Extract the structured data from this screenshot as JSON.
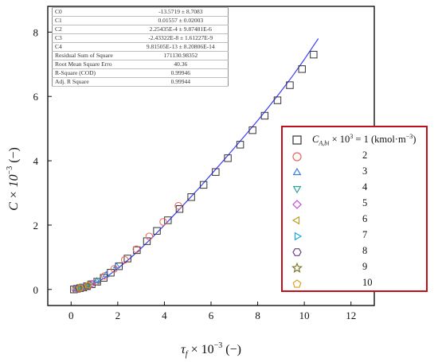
{
  "chart_data": {
    "type": "scatter",
    "xlabel": "τf × 10⁻³ (−)",
    "ylabel": "C × 10⁻³ (−)",
    "xlim": [
      -1,
      13
    ],
    "ylim": [
      -0.5,
      8.8
    ],
    "xticks": [
      0,
      2,
      4,
      6,
      8,
      10,
      12
    ],
    "yticks": [
      0,
      2,
      4,
      6,
      8
    ],
    "x_tick_labels": [
      "0",
      "2",
      "4",
      "6",
      "8",
      "10",
      "12"
    ],
    "y_tick_labels": [
      "0",
      "2",
      "4",
      "6",
      "8"
    ],
    "legend_position": "right",
    "fit_line": {
      "color": "#3a3aff",
      "x": [
        0.15,
        0.5,
        1.0,
        1.5,
        2.0,
        2.5,
        3.0,
        3.5,
        4.0,
        4.5,
        5.0,
        5.5,
        6.0,
        6.5,
        7.0,
        7.5,
        8.0,
        8.5,
        9.0,
        9.5,
        10.0,
        10.6
      ],
      "y": [
        0.0,
        0.05,
        0.18,
        0.38,
        0.65,
        0.95,
        1.28,
        1.63,
        2.0,
        2.38,
        2.77,
        3.16,
        3.57,
        3.98,
        4.4,
        4.82,
        5.25,
        5.7,
        6.16,
        6.64,
        7.15,
        7.8
      ]
    },
    "series": [
      {
        "name": "CA,bi × 10³ = 1 (kmol·m⁻³)",
        "marker": "square",
        "color": "#333333",
        "x": [
          0.12,
          0.25,
          0.38,
          0.52,
          0.68,
          0.88,
          1.12,
          1.4,
          1.7,
          2.05,
          2.42,
          2.82,
          3.25,
          3.68,
          4.15,
          4.65,
          5.15,
          5.68,
          6.2,
          6.72,
          7.25,
          7.78,
          8.3,
          8.85,
          9.38,
          9.9,
          10.4
        ],
        "y": [
          0.0,
          0.02,
          0.04,
          0.06,
          0.1,
          0.16,
          0.24,
          0.36,
          0.52,
          0.72,
          0.96,
          1.22,
          1.5,
          1.82,
          2.15,
          2.5,
          2.87,
          3.25,
          3.65,
          4.08,
          4.5,
          4.95,
          5.4,
          5.88,
          6.35,
          6.85,
          7.3
        ]
      },
      {
        "name": "2",
        "marker": "circle",
        "color": "#e9645a",
        "x": [
          0.18,
          0.35,
          0.55,
          0.8,
          1.1,
          1.45,
          1.85,
          2.3,
          2.8,
          3.35,
          3.95,
          4.6
        ],
        "y": [
          0.01,
          0.03,
          0.07,
          0.14,
          0.25,
          0.42,
          0.64,
          0.92,
          1.25,
          1.65,
          2.1,
          2.6
        ]
      },
      {
        "name": "3",
        "marker": "triangle-up",
        "color": "#3b7bd9",
        "x": [
          0.2,
          0.45,
          0.75,
          1.1,
          1.5,
          1.95
        ],
        "y": [
          0.01,
          0.05,
          0.13,
          0.26,
          0.45,
          0.72
        ]
      },
      {
        "name": "4",
        "marker": "triangle-down",
        "color": "#2aa198",
        "x": [
          0.22,
          0.48,
          0.8,
          1.15
        ],
        "y": [
          0.02,
          0.06,
          0.15,
          0.28
        ]
      },
      {
        "name": "5",
        "marker": "diamond",
        "color": "#c04cd6",
        "x": [
          0.25,
          0.55,
          0.9
        ],
        "y": [
          0.02,
          0.08,
          0.18
        ]
      },
      {
        "name": "6",
        "marker": "triangle-left",
        "color": "#b8a12a",
        "x": [
          0.28,
          0.6
        ],
        "y": [
          0.03,
          0.09
        ]
      },
      {
        "name": "7",
        "marker": "triangle-right",
        "color": "#1ea7d8",
        "x": [
          0.3,
          0.65
        ],
        "y": [
          0.03,
          0.1
        ]
      },
      {
        "name": "8",
        "marker": "hexagon",
        "color": "#6a3d7a",
        "x": [
          0.32,
          0.68
        ],
        "y": [
          0.04,
          0.11
        ]
      },
      {
        "name": "9",
        "marker": "star",
        "color": "#7a7a2a",
        "x": [
          0.35,
          0.7
        ],
        "y": [
          0.04,
          0.12
        ]
      },
      {
        "name": "10",
        "marker": "pentagon",
        "color": "#d9a21e",
        "x": [
          0.38,
          0.72
        ],
        "y": [
          0.05,
          0.13
        ]
      }
    ]
  },
  "stats_table": {
    "rows": [
      {
        "label": "C0",
        "value": "-13.5719 ± 8.7083"
      },
      {
        "label": "C1",
        "value": "0.01557 ± 0.02003"
      },
      {
        "label": "C2",
        "value": "2.25435E-4 ± 9.87481E-6"
      },
      {
        "label": "C3",
        "value": "-2.43322E-8 ± 1.61227E-9"
      },
      {
        "label": "C4",
        "value": "9.81505E-13 ± 8.20806E-14"
      },
      {
        "label": "Residual Sum of Square",
        "value": "171130.98352"
      },
      {
        "label": "Root Mean Square Erro",
        "value": "40.36"
      },
      {
        "label": "R-Square (COD)",
        "value": "0.99946"
      },
      {
        "label": "Adj. R Square",
        "value": "0.99944"
      }
    ]
  },
  "legend": {
    "first_label_prefix": "C",
    "first_label_sub": "A,bi",
    "first_label_mid": " × 10",
    "first_label_sup": "3",
    "first_label_suffix": " = 1 (kmol·m",
    "first_label_sup2": "−3",
    "first_label_end": ")",
    "numbers": [
      "2",
      "3",
      "4",
      "5",
      "6",
      "7",
      "8",
      "9",
      "10"
    ]
  },
  "axis_text": {
    "ylabel_main": "C × 10",
    "ylabel_sup": "−3",
    "ylabel_unit": " (−)",
    "xlabel_main": "τ",
    "xlabel_sub": "f",
    "xlabel_mid": " × 10",
    "xlabel_sup": "−3",
    "xlabel_unit": " (−)"
  }
}
